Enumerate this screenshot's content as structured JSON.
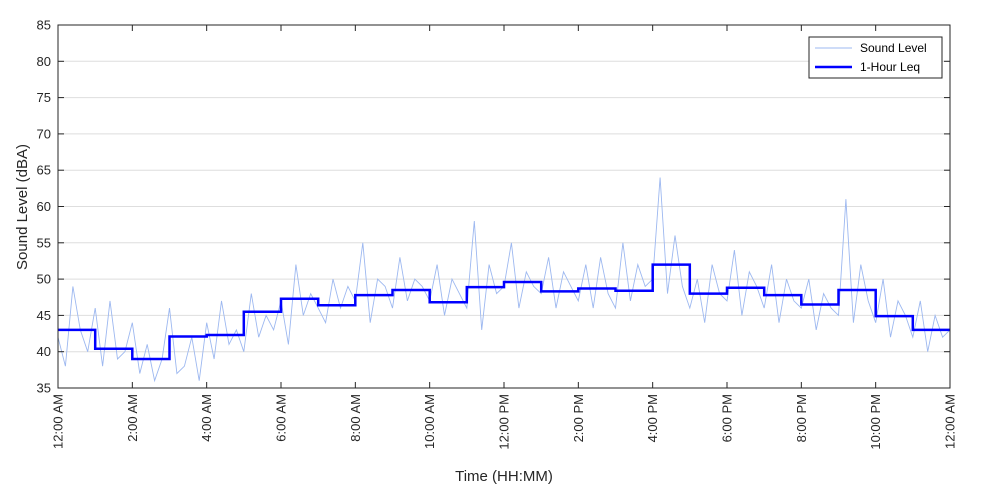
{
  "chart_data": {
    "type": "line",
    "title": "",
    "xlabel": "Time (HH:MM)",
    "ylabel": "Sound Level (dBA)",
    "xlim": [
      0,
      24
    ],
    "ylim": [
      35,
      85
    ],
    "y_ticks": [
      35,
      40,
      45,
      50,
      55,
      60,
      65,
      70,
      75,
      80,
      85
    ],
    "x_ticks": [
      {
        "hour": 0,
        "label": "12:00 AM"
      },
      {
        "hour": 2,
        "label": "2:00 AM"
      },
      {
        "hour": 4,
        "label": "4:00 AM"
      },
      {
        "hour": 6,
        "label": "6:00 AM"
      },
      {
        "hour": 8,
        "label": "8:00 AM"
      },
      {
        "hour": 10,
        "label": "10:00 AM"
      },
      {
        "hour": 12,
        "label": "12:00 PM"
      },
      {
        "hour": 14,
        "label": "2:00 PM"
      },
      {
        "hour": 16,
        "label": "4:00 PM"
      },
      {
        "hour": 18,
        "label": "6:00 PM"
      },
      {
        "hour": 20,
        "label": "8:00 PM"
      },
      {
        "hour": 22,
        "label": "10:00 PM"
      },
      {
        "hour": 24,
        "label": "12:00 AM"
      }
    ],
    "grid": "horizontal",
    "legend_position": "top-right",
    "series": [
      {
        "name": "Sound Level",
        "style": "thin-line",
        "color": "#9db8f0",
        "x": [
          0,
          0.2,
          0.4,
          0.6,
          0.8,
          1,
          1.2,
          1.4,
          1.6,
          1.8,
          2,
          2.2,
          2.4,
          2.6,
          2.8,
          3,
          3.2,
          3.4,
          3.6,
          3.8,
          4,
          4.2,
          4.4,
          4.6,
          4.8,
          5,
          5.2,
          5.4,
          5.6,
          5.8,
          6,
          6.2,
          6.4,
          6.6,
          6.8,
          7,
          7.2,
          7.4,
          7.6,
          7.8,
          8,
          8.2,
          8.4,
          8.6,
          8.8,
          9,
          9.2,
          9.4,
          9.6,
          9.8,
          10,
          10.2,
          10.4,
          10.6,
          10.8,
          11,
          11.2,
          11.4,
          11.6,
          11.8,
          12,
          12.2,
          12.4,
          12.6,
          12.8,
          13,
          13.2,
          13.4,
          13.6,
          13.8,
          14,
          14.2,
          14.4,
          14.6,
          14.8,
          15,
          15.2,
          15.4,
          15.6,
          15.8,
          16,
          16.2,
          16.4,
          16.6,
          16.8,
          17,
          17.2,
          17.4,
          17.6,
          17.8,
          18,
          18.2,
          18.4,
          18.6,
          18.8,
          19,
          19.2,
          19.4,
          19.6,
          19.8,
          20,
          20.2,
          20.4,
          20.6,
          20.8,
          21,
          21.2,
          21.4,
          21.6,
          21.8,
          22,
          22.2,
          22.4,
          22.6,
          22.8,
          23,
          23.2,
          23.4,
          23.6,
          23.8,
          24
        ],
        "values": [
          42,
          38,
          49,
          43,
          40,
          46,
          38,
          47,
          39,
          40,
          44,
          37,
          41,
          36,
          39,
          46,
          37,
          38,
          42,
          36,
          44,
          39,
          47,
          41,
          43,
          40,
          48,
          42,
          45,
          43,
          47,
          41,
          52,
          45,
          48,
          46,
          44,
          50,
          46,
          49,
          47,
          55,
          44,
          50,
          49,
          46,
          53,
          47,
          50,
          49,
          47,
          52,
          45,
          50,
          48,
          46,
          58,
          43,
          52,
          48,
          49,
          55,
          46,
          51,
          49,
          48,
          53,
          46,
          51,
          49,
          47,
          52,
          46,
          53,
          48,
          46,
          55,
          47,
          52,
          49,
          50,
          64,
          48,
          56,
          49,
          46,
          50,
          44,
          52,
          48,
          47,
          54,
          45,
          51,
          49,
          46,
          52,
          44,
          50,
          47,
          46,
          50,
          43,
          48,
          46,
          45,
          61,
          44,
          52,
          47,
          44,
          50,
          42,
          47,
          45,
          42,
          47,
          40,
          45,
          42,
          43
        ]
      },
      {
        "name": "1-Hour Leq",
        "style": "step",
        "color": "#0000ff",
        "x": [
          0,
          1,
          2,
          3,
          4,
          5,
          6,
          7,
          8,
          9,
          10,
          11,
          12,
          13,
          14,
          15,
          16,
          17,
          18,
          19,
          20,
          21,
          22,
          23
        ],
        "values": [
          43.0,
          40.4,
          39.0,
          42.1,
          42.3,
          45.5,
          47.3,
          46.4,
          47.8,
          48.5,
          46.8,
          48.9,
          49.6,
          48.3,
          48.7,
          48.4,
          52.0,
          48.0,
          48.8,
          47.8,
          46.5,
          48.5,
          44.9,
          43.0
        ]
      }
    ]
  }
}
